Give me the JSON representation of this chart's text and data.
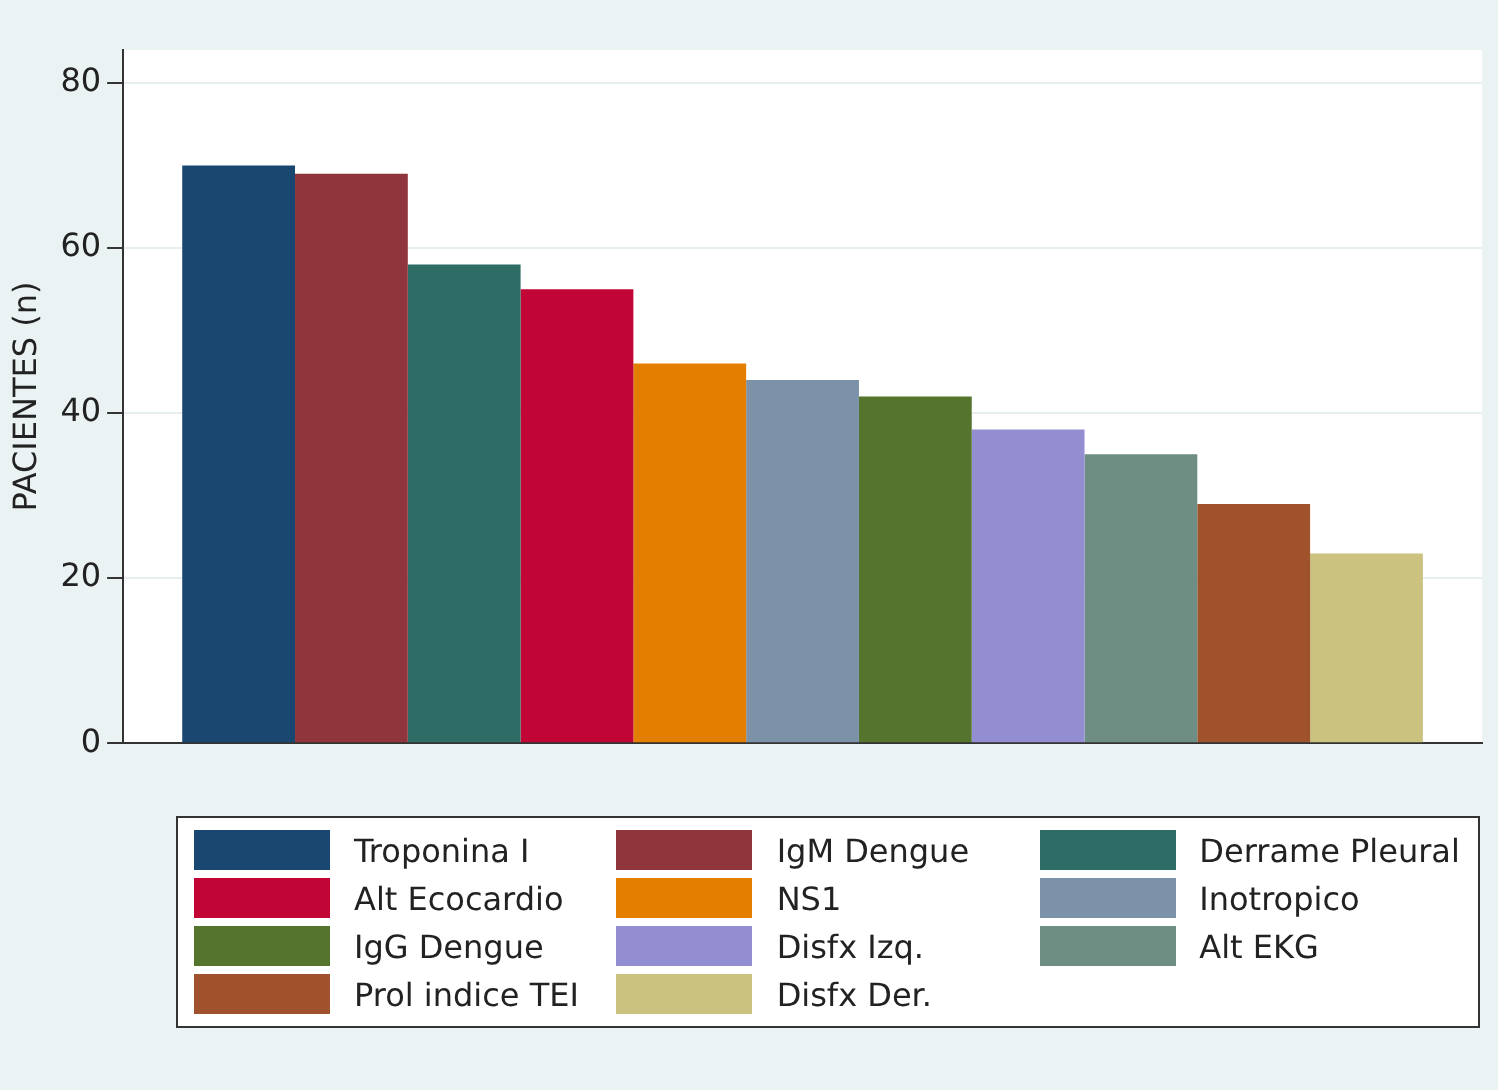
{
  "chart_data": {
    "type": "bar",
    "ylabel": "PACIENTES (n)",
    "categories": [
      null
    ],
    "ylim": [
      0,
      84
    ],
    "yticks": [
      0,
      20,
      40,
      60,
      80
    ],
    "grid": "y",
    "legend": "bottom",
    "series": [
      {
        "name": "Troponina I",
        "color": "#1a476f",
        "values": [
          70
        ]
      },
      {
        "name": "IgM Dengue",
        "color": "#90353b",
        "values": [
          69
        ]
      },
      {
        "name": "Derrame Pleural",
        "color": "#2d6d66",
        "values": [
          58
        ]
      },
      {
        "name": "Alt Ecocardio",
        "color": "#c10534",
        "values": [
          55
        ]
      },
      {
        "name": "NS1",
        "color": "#e37e00",
        "values": [
          46
        ]
      },
      {
        "name": "Inotropico",
        "color": "#7b92a8",
        "values": [
          44
        ]
      },
      {
        "name": "IgG Dengue",
        "color": "#55752f",
        "values": [
          42
        ]
      },
      {
        "name": "Disfx Izq.",
        "color": "#938dd2",
        "values": [
          38
        ]
      },
      {
        "name": "Alt EKG",
        "color": "#6e8e84",
        "values": [
          35
        ]
      },
      {
        "name": "Prol indice TEI",
        "color": "#a0522d",
        "values": [
          29
        ]
      },
      {
        "name": "Disfx Der.",
        "color": "#cac27e",
        "values": [
          23
        ]
      }
    ]
  }
}
